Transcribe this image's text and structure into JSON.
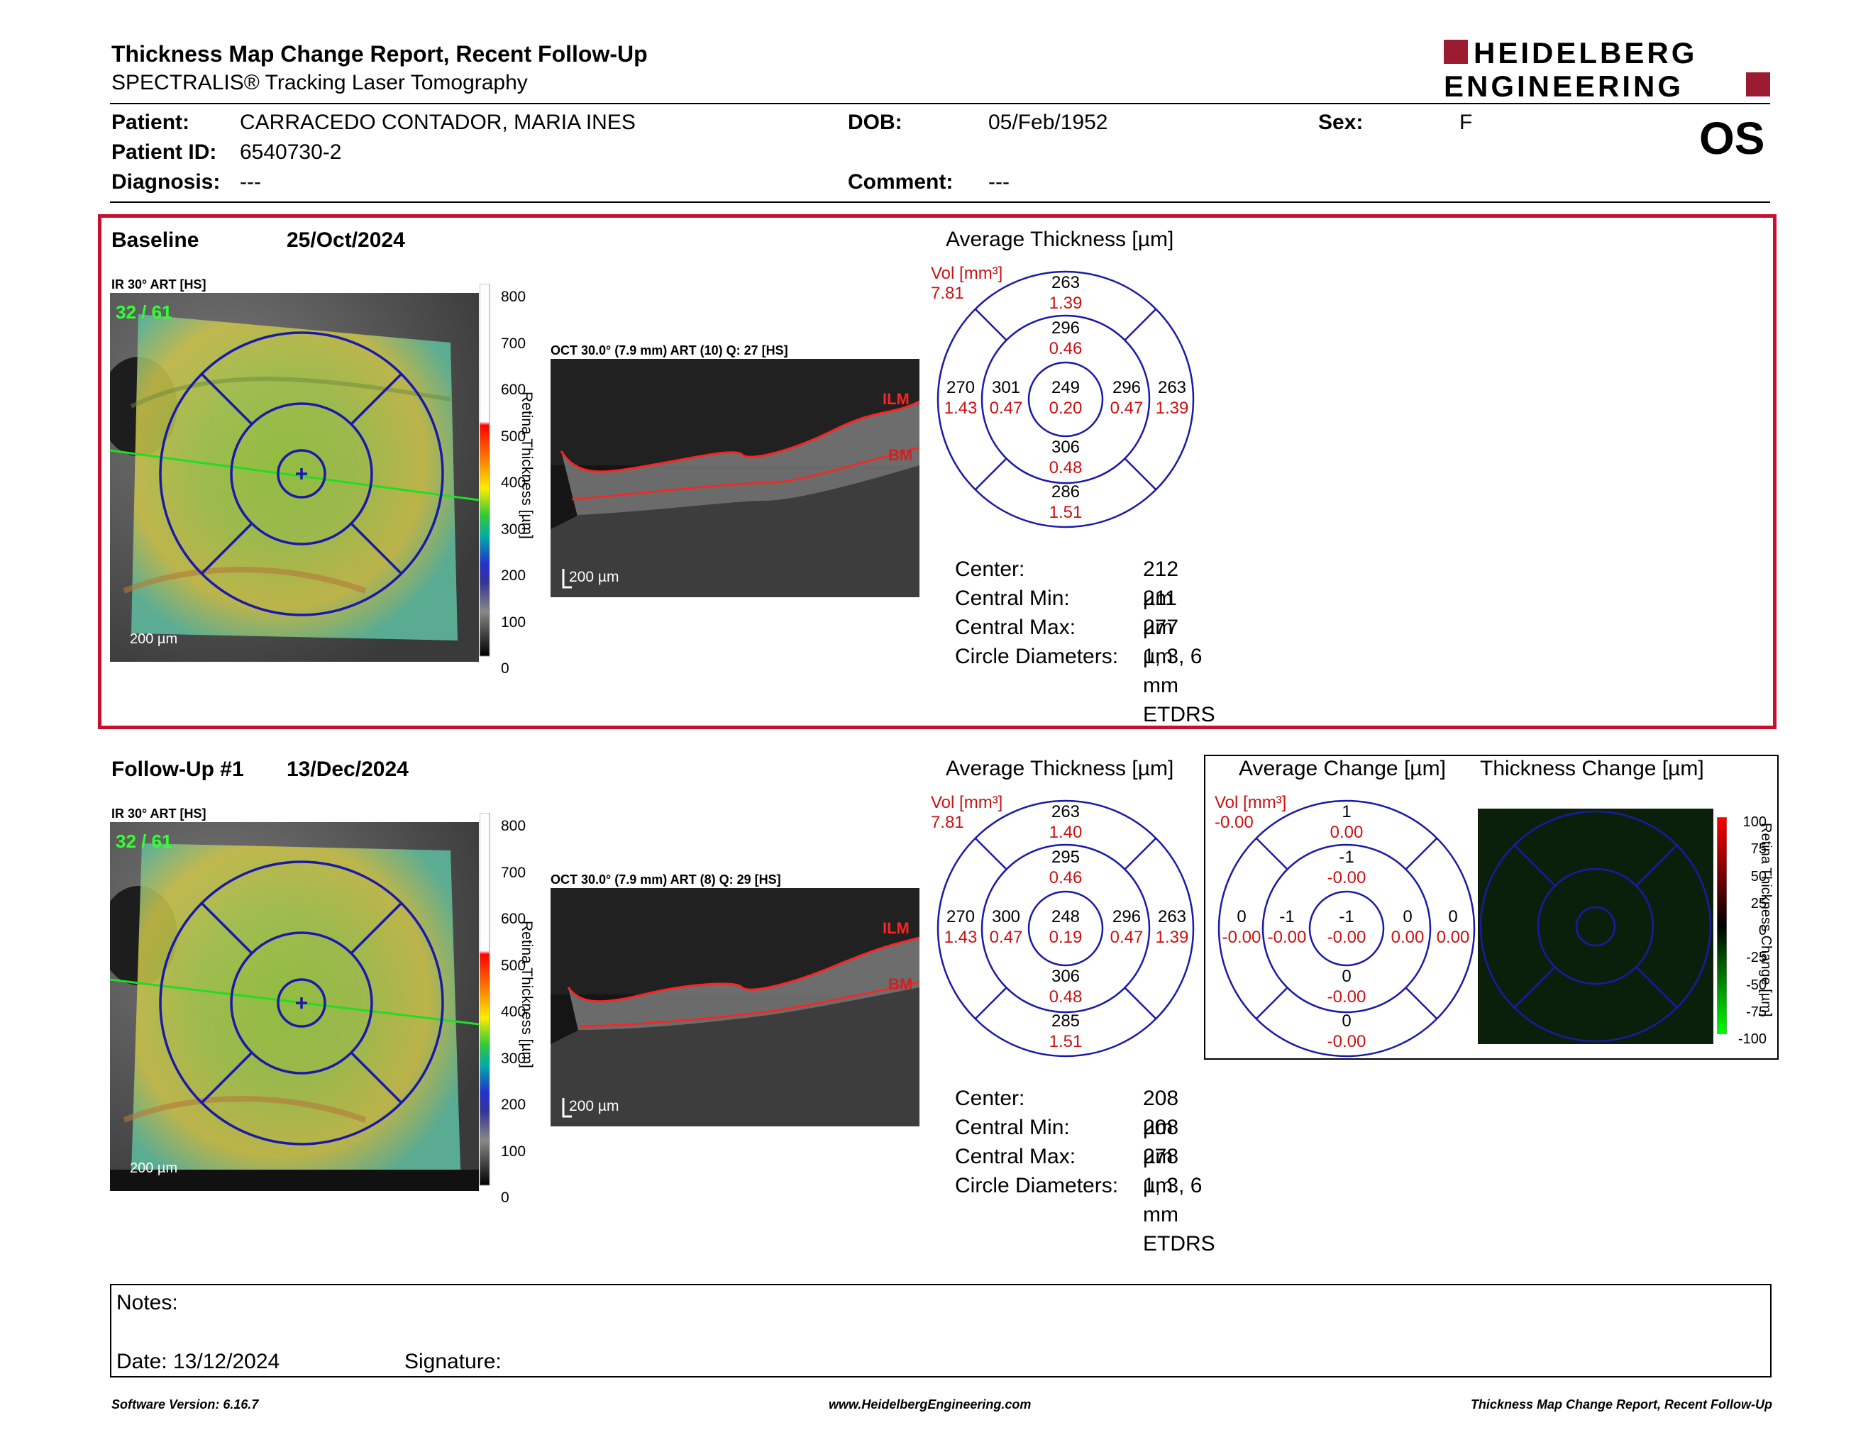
{
  "header": {
    "title": "Thickness Map Change Report, Recent Follow-Up",
    "subtitle": "SPECTRALIS® Tracking Laser Tomography",
    "logo_line1": "HEIDELBERG",
    "logo_line2": "ENGINEERING",
    "eye": "OS"
  },
  "patient": {
    "patient_label": "Patient:",
    "patient_value": "CARRACEDO CONTADOR, MARIA INES",
    "dob_label": "DOB:",
    "dob_value": "05/Feb/1952",
    "sex_label": "Sex:",
    "sex_value": "F",
    "id_label": "Patient ID:",
    "id_value": "6540730-2",
    "diagnosis_label": "Diagnosis:",
    "diagnosis_value": "---",
    "comment_label": "Comment:",
    "comment_value": "---"
  },
  "colors": {
    "accent_red": "#cc1111",
    "etdrs_blue": "#1a1aa8",
    "frame_red": "#c8102e"
  },
  "baseline": {
    "label": "Baseline",
    "date": "25/Oct/2024",
    "ir_label": "IR 30° ART [HS]",
    "ir_counter": "32 / 61",
    "oct_label": "OCT 30.0° (7.9 mm) ART (10) Q: 27 [HS]",
    "scale_label": "200 µm",
    "colorbar_ticks": [
      "800",
      "700",
      "600",
      "500",
      "400",
      "300",
      "200",
      "100",
      "0"
    ],
    "colorbar_title": "Retina Thickness [µm]",
    "ilm": "ILM",
    "bm": "BM",
    "avg_title": "Average Thickness [µm]",
    "vol_label": "Vol [mm³]",
    "vol_value": "7.81",
    "grid": {
      "outer_top": [
        "263",
        "1.39"
      ],
      "inner_top": [
        "296",
        "0.46"
      ],
      "outer_left": [
        "270",
        "1.43"
      ],
      "inner_left": [
        "301",
        "0.47"
      ],
      "center": [
        "249",
        "0.20"
      ],
      "inner_right": [
        "296",
        "0.47"
      ],
      "outer_right": [
        "263",
        "1.39"
      ],
      "inner_bottom": [
        "306",
        "0.48"
      ],
      "outer_bottom": [
        "286",
        "1.51"
      ]
    },
    "stats": [
      {
        "label": "Center:",
        "value": "212 µm"
      },
      {
        "label": "Central Min:",
        "value": "211 µm"
      },
      {
        "label": "Central Max:",
        "value": "277 µm"
      },
      {
        "label": "Circle Diameters:",
        "value": "1, 3, 6 mm ETDRS"
      }
    ]
  },
  "followup": {
    "label": "Follow-Up #1",
    "date": "13/Dec/2024",
    "ir_label": "IR 30° ART [HS]",
    "ir_counter": "32 / 61",
    "oct_label": "OCT 30.0° (7.9 mm) ART (8) Q: 29 [HS]",
    "scale_label": "200 µm",
    "colorbar_ticks": [
      "800",
      "700",
      "600",
      "500",
      "400",
      "300",
      "200",
      "100",
      "0"
    ],
    "colorbar_title": "Retina Thickness [µm]",
    "ilm": "ILM",
    "bm": "BM",
    "avg_title": "Average Thickness [µm]",
    "vol_label": "Vol [mm³]",
    "vol_value": "7.81",
    "grid": {
      "outer_top": [
        "263",
        "1.40"
      ],
      "inner_top": [
        "295",
        "0.46"
      ],
      "outer_left": [
        "270",
        "1.43"
      ],
      "inner_left": [
        "300",
        "0.47"
      ],
      "center": [
        "248",
        "0.19"
      ],
      "inner_right": [
        "296",
        "0.47"
      ],
      "outer_right": [
        "263",
        "1.39"
      ],
      "inner_bottom": [
        "306",
        "0.48"
      ],
      "outer_bottom": [
        "285",
        "1.51"
      ]
    },
    "stats": [
      {
        "label": "Center:",
        "value": "208 µm"
      },
      {
        "label": "Central Min:",
        "value": "208 µm"
      },
      {
        "label": "Central Max:",
        "value": "278 µm"
      },
      {
        "label": "Circle Diameters:",
        "value": "1, 3, 6 mm ETDRS"
      }
    ],
    "change_title": "Average Change [µm]",
    "change_vol_label": "Vol [mm³]",
    "change_vol_value": "-0.00",
    "change_grid": {
      "outer_top": [
        "1",
        "0.00"
      ],
      "inner_top": [
        "-1",
        "-0.00"
      ],
      "outer_left": [
        "0",
        "-0.00"
      ],
      "inner_left": [
        "-1",
        "-0.00"
      ],
      "center": [
        "-1",
        "-0.00"
      ],
      "inner_right": [
        "0",
        "0.00"
      ],
      "outer_right": [
        "0",
        "0.00"
      ],
      "inner_bottom": [
        "0",
        "-0.00"
      ],
      "outer_bottom": [
        "0",
        "-0.00"
      ]
    },
    "thickness_change_title": "Thickness Change [µm]",
    "change_ticks": [
      "100",
      "75",
      "50",
      "25",
      "0",
      "-25",
      "-50",
      "-75",
      "-100"
    ],
    "change_colorbar_title": "Retina Thickness Change [µm]"
  },
  "notes": {
    "notes_label": "Notes:",
    "date_label": "Date: 13/12/2024",
    "signature_label": "Signature:"
  },
  "footer": {
    "software": "Software Version: 6.16.7",
    "website": "www.HeidelbergEngineering.com",
    "report": "Thickness Map Change Report, Recent Follow-Up"
  }
}
